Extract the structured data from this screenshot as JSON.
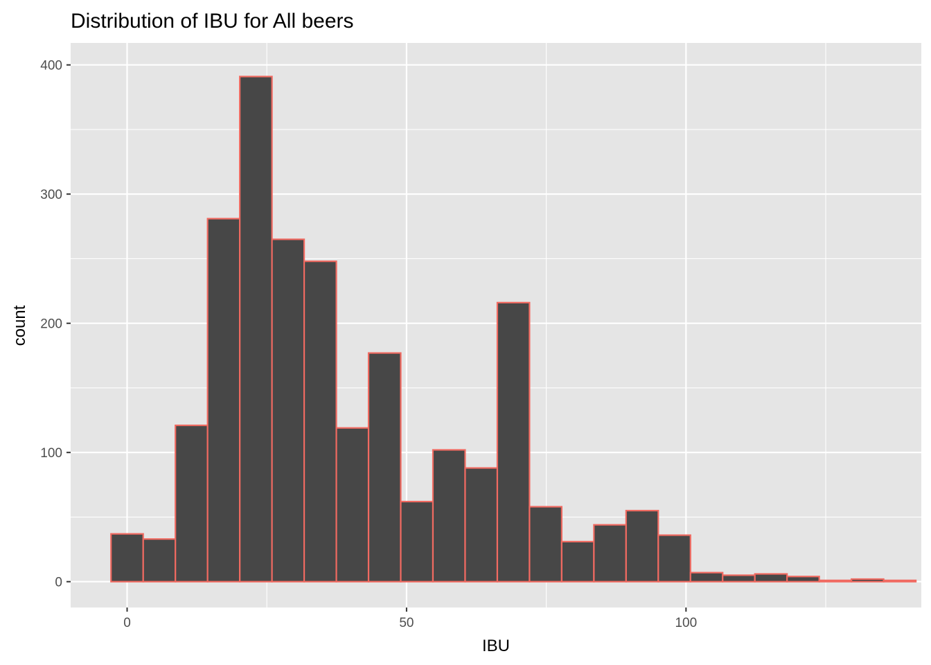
{
  "chart_data": {
    "type": "bar",
    "title": "Distribution of IBU for All beers",
    "xlabel": "IBU",
    "ylabel": "count",
    "x_ticks": [
      0,
      50,
      100
    ],
    "y_ticks": [
      0,
      100,
      200,
      300,
      400
    ],
    "xlim": [
      -10.1,
      142.1
    ],
    "ylim": [
      -20,
      417
    ],
    "bin_width": 5.76,
    "bins": [
      {
        "center": 0,
        "count": 37
      },
      {
        "center": 5.76,
        "count": 33
      },
      {
        "center": 11.52,
        "count": 121
      },
      {
        "center": 17.28,
        "count": 281
      },
      {
        "center": 23.04,
        "count": 391
      },
      {
        "center": 28.8,
        "count": 265
      },
      {
        "center": 34.56,
        "count": 248
      },
      {
        "center": 40.32,
        "count": 119
      },
      {
        "center": 46.08,
        "count": 177
      },
      {
        "center": 51.84,
        "count": 62
      },
      {
        "center": 57.6,
        "count": 102
      },
      {
        "center": 63.36,
        "count": 88
      },
      {
        "center": 69.12,
        "count": 216
      },
      {
        "center": 74.88,
        "count": 58
      },
      {
        "center": 80.64,
        "count": 31
      },
      {
        "center": 86.4,
        "count": 44
      },
      {
        "center": 92.16,
        "count": 55
      },
      {
        "center": 97.92,
        "count": 36
      },
      {
        "center": 103.68,
        "count": 7
      },
      {
        "center": 109.44,
        "count": 5
      },
      {
        "center": 115.2,
        "count": 6
      },
      {
        "center": 120.96,
        "count": 4
      },
      {
        "center": 126.72,
        "count": 1
      },
      {
        "center": 132.48,
        "count": 2
      },
      {
        "center": 138.24,
        "count": 1
      }
    ],
    "grid": true,
    "colors": {
      "panel_background": "#e5e5e5",
      "grid": "#ffffff",
      "bar_fill": "#474747",
      "bar_outline": "#f06a61"
    }
  }
}
